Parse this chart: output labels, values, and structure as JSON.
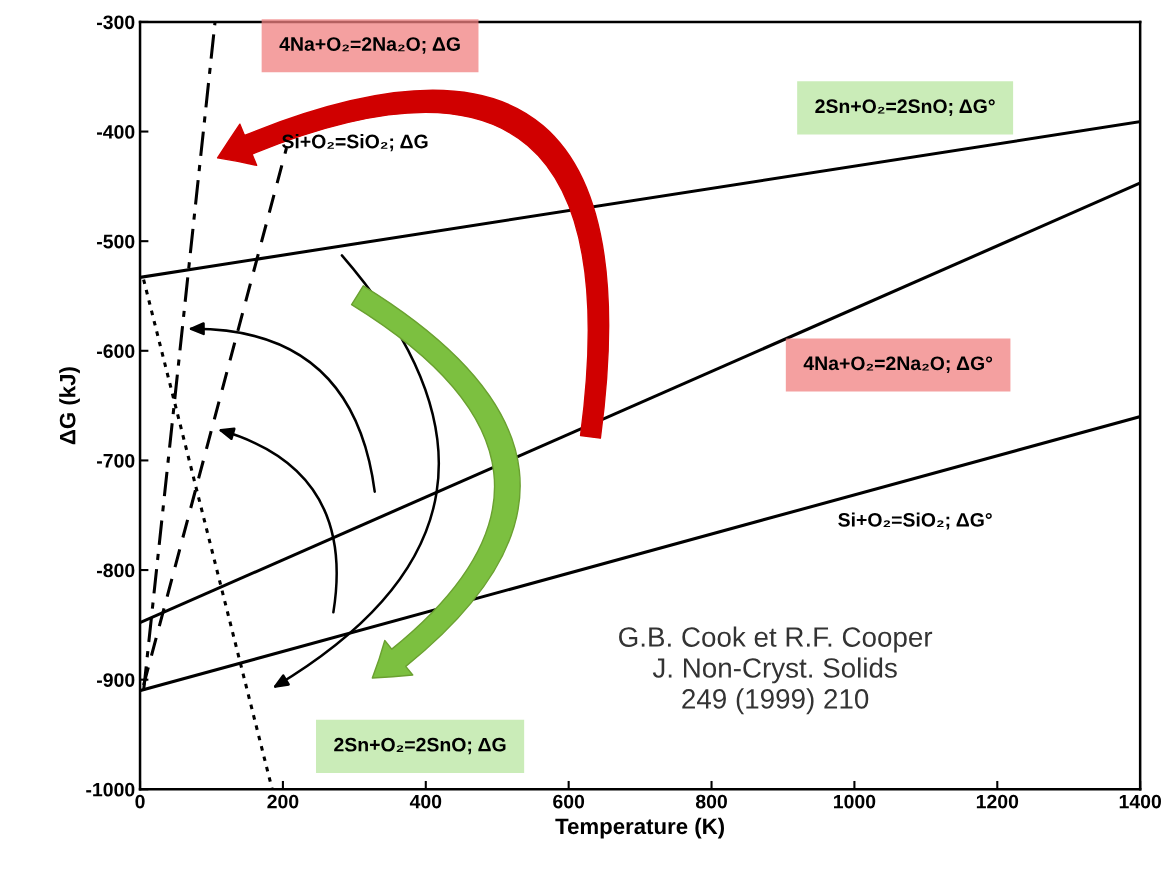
{
  "chart_data": {
    "type": "line",
    "xlabel": "Temperature (K)",
    "ylabel": "ΔG (kJ)",
    "xlim": [
      0,
      1400
    ],
    "ylim": [
      -1000,
      -300
    ],
    "xticks": [
      0,
      200,
      400,
      600,
      800,
      1000,
      1200,
      1400
    ],
    "yticks": [
      -1000,
      -900,
      -800,
      -700,
      -600,
      -500,
      -400,
      -300
    ],
    "grid": false,
    "legend": false,
    "series": [
      {
        "x": [
          0,
          1400
        ],
        "values": [
          -533,
          -391
        ],
        "color": "#000000",
        "line_style": "solid"
      },
      {
        "x": [
          0,
          1400
        ],
        "values": [
          -848,
          -447
        ],
        "color": "#000000",
        "line_style": "solid"
      },
      {
        "x": [
          0,
          1400
        ],
        "values": [
          -910,
          -660
        ],
        "color": "#000000",
        "line_style": "solid"
      },
      {
        "x": [
          5,
          105
        ],
        "values": [
          -910,
          -300
        ],
        "color": "#000000",
        "line_style": "dashdot"
      },
      {
        "x": [
          5,
          205
        ],
        "values": [
          -905,
          -415
        ],
        "color": "#000000",
        "line_style": "dashed"
      },
      {
        "x": [
          5,
          185
        ],
        "values": [
          -535,
          -1000
        ],
        "color": "#000000",
        "line_style": "dotted"
      }
    ],
    "annotations": [
      "4Na+O₂=2Na₂O; ΔG",
      "Si+O₂=SiO₂; ΔG",
      "2Sn+O₂=2SnO; ΔG°",
      "4Na+O₂=2Na₂O; ΔG°",
      "Si+O₂=SiO₂; ΔG°",
      "2Sn+O₂=2SnO; ΔG",
      "G.B. Cook et R.F. Cooper\nJ. Non-Cryst. Solids\n249 (1999) 210"
    ]
  }
}
